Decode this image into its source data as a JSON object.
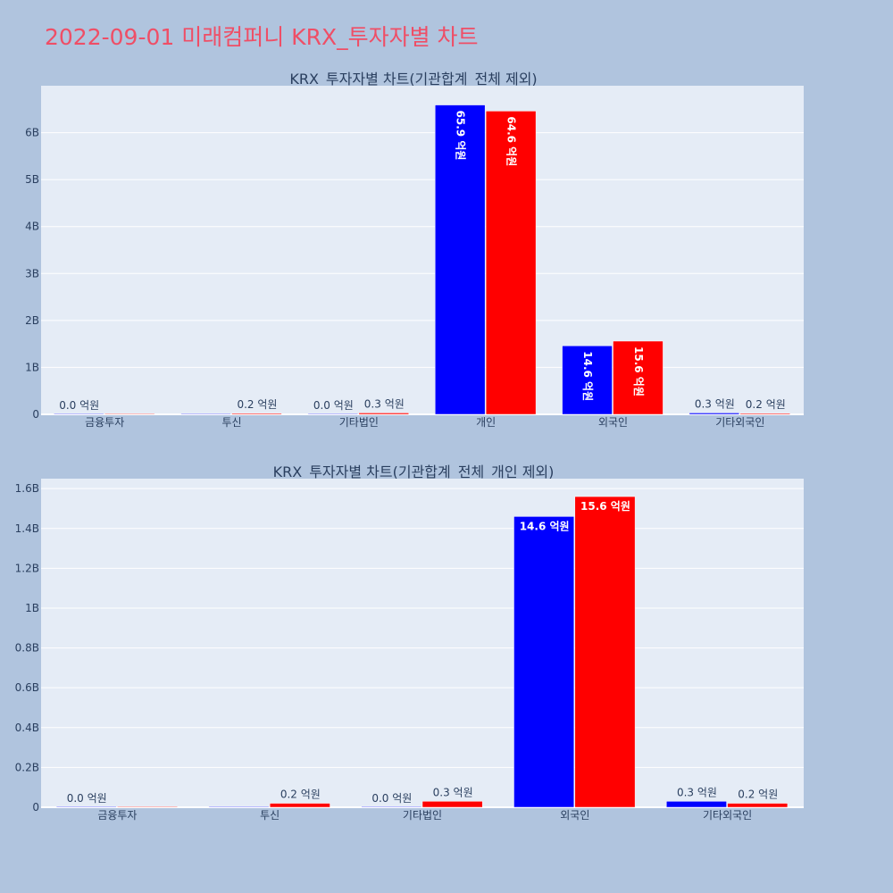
{
  "page": {
    "title": "2022-09-01 미래컴퍼니 KRX_투자자별 차트"
  },
  "colors": {
    "page_background": "#b0c4de",
    "plot_background": "#e5ecf6",
    "title": "#ef4e66",
    "series_blue": "#0000ff",
    "series_red": "#ff0000"
  },
  "chart_data": [
    {
      "type": "bar",
      "title": "KRX_투자자별 차트(기관합계_전체 제외)",
      "xlabel": "",
      "ylabel": "",
      "categories": [
        "금융투자",
        "투신",
        "기타법인",
        "개인",
        "외국인",
        "기타외국인"
      ],
      "ylim": [
        0,
        7000000000
      ],
      "yticks": [
        0,
        1000000000,
        2000000000,
        3000000000,
        4000000000,
        5000000000,
        6000000000
      ],
      "yticklabels": [
        "0",
        "1B",
        "2B",
        "3B",
        "4B",
        "5B",
        "6B"
      ],
      "grid": true,
      "legend": false,
      "series": [
        {
          "color": "#0000ff",
          "values": [
            0,
            0,
            0,
            6590000000,
            1460000000,
            30000000
          ],
          "labels": [
            "0.0 억원",
            "",
            "0.0 억원",
            "65.9 억원",
            "14.6 억원",
            "0.3 억원"
          ]
        },
        {
          "color": "#ff0000",
          "values": [
            0,
            20000000,
            30000000,
            6460000000,
            1560000000,
            20000000
          ],
          "labels": [
            "",
            "0.2 억원",
            "0.3 억원",
            "64.6 억원",
            "15.6 억원",
            "0.2 억원"
          ]
        }
      ]
    },
    {
      "type": "bar",
      "title": "KRX_투자자별 차트(기관합계_전체_개인 제외)",
      "xlabel": "",
      "ylabel": "",
      "categories": [
        "금융투자",
        "투신",
        "기타법인",
        "외국인",
        "기타외국인"
      ],
      "ylim": [
        0,
        1650000000
      ],
      "yticks": [
        0,
        200000000,
        400000000,
        600000000,
        800000000,
        1000000000,
        1200000000,
        1400000000,
        1600000000
      ],
      "yticklabels": [
        "0",
        "0.2B",
        "0.4B",
        "0.6B",
        "0.8B",
        "1B",
        "1.2B",
        "1.4B",
        "1.6B"
      ],
      "grid": true,
      "legend": false,
      "series": [
        {
          "color": "#0000ff",
          "values": [
            0,
            0,
            0,
            1460000000,
            30000000
          ],
          "labels": [
            "0.0 억원",
            "",
            "0.0 억원",
            "14.6 억원",
            "0.3 억원"
          ]
        },
        {
          "color": "#ff0000",
          "values": [
            0,
            20000000,
            30000000,
            1560000000,
            20000000
          ],
          "labels": [
            "",
            "0.2 억원",
            "0.3 억원",
            "15.6 억원",
            "0.2 억원"
          ]
        }
      ]
    }
  ]
}
